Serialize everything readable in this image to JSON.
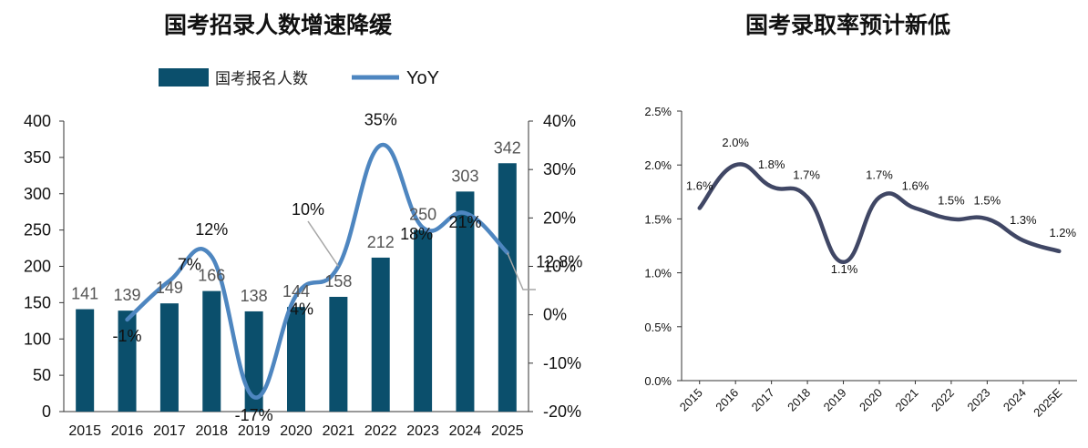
{
  "chart_data": [
    {
      "type": "bar",
      "title": "国考招录人数增速降缓",
      "categories": [
        "2015",
        "2016",
        "2017",
        "2018",
        "2019",
        "2020",
        "2021",
        "2022",
        "2023",
        "2024",
        "2025"
      ],
      "series": [
        {
          "name": "国考报名人数",
          "type": "bar",
          "axis": "left",
          "values": [
            141,
            139,
            149,
            166,
            138,
            144,
            158,
            212,
            250,
            303,
            342
          ],
          "labels": [
            "141",
            "139",
            "149",
            "166",
            "138",
            "144",
            "158",
            "212",
            "250",
            "303",
            "342"
          ]
        },
        {
          "name": "YoY",
          "type": "line",
          "axis": "right",
          "values": [
            null,
            -1,
            7,
            12,
            -17,
            4,
            10,
            35,
            18,
            21,
            12.8
          ],
          "labels": [
            "",
            "-1%",
            "7%",
            "12%",
            "-17%",
            "4%",
            "10%",
            "35%",
            "18%",
            "21%",
            "12.8%"
          ]
        }
      ],
      "ylim": [
        0,
        400
      ],
      "y_ticks": [
        "0",
        "50",
        "100",
        "150",
        "200",
        "250",
        "300",
        "350",
        "400"
      ],
      "y2lim": [
        -20,
        40
      ],
      "y2_ticks": [
        "-20%",
        "-10%",
        "0%",
        "10%",
        "20%",
        "30%",
        "40%"
      ],
      "legend_position": "top",
      "grid": false,
      "colors": {
        "bar": "#0b4f6c",
        "line": "#4e86c0",
        "leader": "#a6a6a6"
      }
    },
    {
      "type": "line",
      "title": "国考录取率预计新低",
      "categories": [
        "2015",
        "2016",
        "2017",
        "2018",
        "2019",
        "2020",
        "2021",
        "2022",
        "2023",
        "2024",
        "2025E"
      ],
      "series": [
        {
          "name": "",
          "values": [
            1.6,
            2.0,
            1.8,
            1.7,
            1.1,
            1.7,
            1.6,
            1.5,
            1.5,
            1.3,
            1.2
          ],
          "labels": [
            "1.6%",
            "2.0%",
            "1.8%",
            "1.7%",
            "1.1%",
            "1.7%",
            "1.6%",
            "1.5%",
            "1.5%",
            "1.3%",
            "1.2%"
          ]
        }
      ],
      "ylim": [
        0,
        2.5
      ],
      "y_ticks": [
        "0.0%",
        "0.5%",
        "1.0%",
        "1.5%",
        "2.0%",
        "2.5%"
      ],
      "grid": false,
      "colors": {
        "line": "#404765"
      }
    }
  ]
}
